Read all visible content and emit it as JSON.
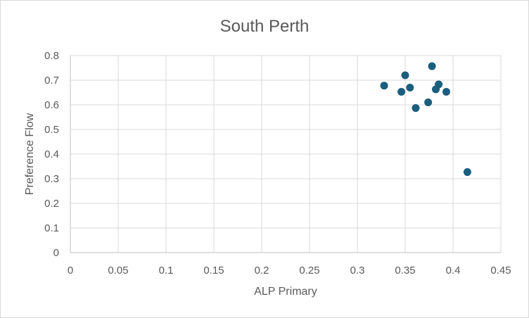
{
  "chart_data": {
    "type": "scatter",
    "title": "South Perth",
    "xlabel": "ALP Primary",
    "ylabel": "Preference Flow",
    "xlim": [
      0,
      0.45
    ],
    "ylim": [
      0,
      0.8
    ],
    "x_ticks": [
      "0",
      "0.05",
      "0.1",
      "0.15",
      "0.2",
      "0.25",
      "0.3",
      "0.35",
      "0.4",
      "0.45"
    ],
    "y_ticks": [
      "0",
      "0.1",
      "0.2",
      "0.3",
      "0.4",
      "0.5",
      "0.6",
      "0.7",
      "0.8"
    ],
    "grid": true,
    "legend": "none",
    "marker_color": "#1B5E7E",
    "points": [
      {
        "x": 0.328,
        "y": 0.678
      },
      {
        "x": 0.346,
        "y": 0.653
      },
      {
        "x": 0.35,
        "y": 0.72
      },
      {
        "x": 0.355,
        "y": 0.67
      },
      {
        "x": 0.361,
        "y": 0.587
      },
      {
        "x": 0.374,
        "y": 0.61
      },
      {
        "x": 0.378,
        "y": 0.757
      },
      {
        "x": 0.382,
        "y": 0.663
      },
      {
        "x": 0.385,
        "y": 0.683
      },
      {
        "x": 0.393,
        "y": 0.653
      },
      {
        "x": 0.415,
        "y": 0.327
      }
    ]
  }
}
